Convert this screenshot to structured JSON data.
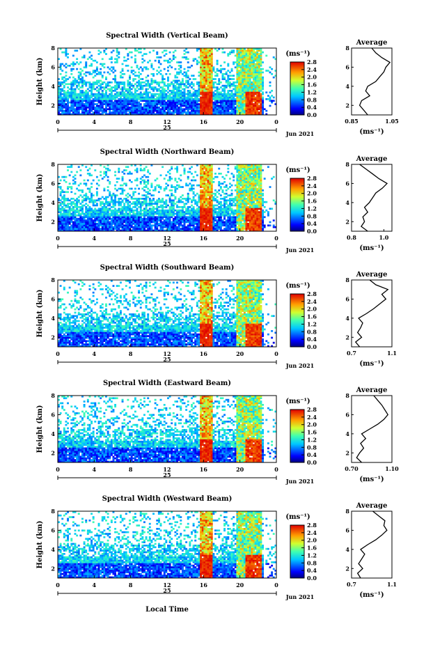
{
  "figure": {
    "colorbar_unit": "(ms⁻¹)",
    "colorbar_ticks": [
      "2.8",
      "2.4",
      "2.0",
      "1.6",
      "1.2",
      "0.8",
      "0.4",
      "0.0"
    ],
    "xlabel_bottom": "Local Time",
    "avg_title": "Average",
    "avg_xlabel": "(ms⁻¹)"
  },
  "chart_data": [
    {
      "type": "heatmap",
      "title": "Spectral Width (Vertical Beam)",
      "ylabel": "Height (km)",
      "yticks": [
        "2",
        "4",
        "6",
        "8"
      ],
      "ylim": [
        1,
        8
      ],
      "xticks": [
        "0",
        "4",
        "8",
        "12",
        "16",
        "20",
        "0"
      ],
      "xlim": [
        0,
        24
      ],
      "day_label": "25",
      "date_label": "Jun 2021",
      "colorbar": {
        "ticks": [
          "2.8",
          "2.4",
          "2.0",
          "1.6",
          "1.2",
          "0.8",
          "0.4",
          "0.0"
        ],
        "range": [
          0,
          2.8
        ]
      },
      "average_profile": {
        "title": "Average",
        "xlabel": "(ms⁻¹)",
        "xticks": [
          "0.85",
          "1.05"
        ],
        "xlim": [
          0.85,
          1.05
        ],
        "ylim": [
          1,
          8
        ],
        "height": [
          1.0,
          1.5,
          2.0,
          2.5,
          3.0,
          3.5,
          4.0,
          4.5,
          5.0,
          5.5,
          6.0,
          6.5,
          7.0,
          7.5,
          8.0
        ],
        "value": [
          0.93,
          0.91,
          0.89,
          0.9,
          0.94,
          0.92,
          0.93,
          0.97,
          0.99,
          1.01,
          1.02,
          1.04,
          1.0,
          0.97,
          0.95
        ]
      }
    },
    {
      "type": "heatmap",
      "title": "Spectral Width (Northward Beam)",
      "ylabel": "Height (km)",
      "yticks": [
        "2",
        "4",
        "6",
        "8"
      ],
      "ylim": [
        1,
        8
      ],
      "xticks": [
        "0",
        "4",
        "8",
        "12",
        "16",
        "20",
        "0"
      ],
      "xlim": [
        0,
        24
      ],
      "day_label": "25",
      "date_label": "Jun 2021",
      "colorbar": {
        "ticks": [
          "2.8",
          "2.4",
          "2.0",
          "1.6",
          "1.2",
          "0.8",
          "0.4",
          "0.0"
        ],
        "range": [
          0,
          2.8
        ]
      },
      "average_profile": {
        "title": "Average",
        "xlabel": "(ms⁻¹)",
        "xticks": [
          "0.8",
          "1.0"
        ],
        "xlim": [
          0.8,
          1.05
        ],
        "ylim": [
          1,
          8
        ],
        "height": [
          1.0,
          1.5,
          2.0,
          2.5,
          3.0,
          3.5,
          4.0,
          4.5,
          5.0,
          5.5,
          6.0,
          6.5,
          7.0,
          7.5,
          8.0
        ],
        "value": [
          0.9,
          0.86,
          0.88,
          0.87,
          0.9,
          0.88,
          0.91,
          0.93,
          0.95,
          0.99,
          1.02,
          0.97,
          0.93,
          0.89,
          0.85
        ]
      }
    },
    {
      "type": "heatmap",
      "title": "Spectral Width (Southward Beam)",
      "ylabel": "Height (km)",
      "yticks": [
        "2",
        "4",
        "6",
        "8"
      ],
      "ylim": [
        1,
        8
      ],
      "xticks": [
        "0",
        "4",
        "8",
        "12",
        "16",
        "20",
        "0"
      ],
      "xlim": [
        0,
        24
      ],
      "day_label": "25",
      "date_label": "Jun 2021",
      "colorbar": {
        "ticks": [
          "2.8",
          "2.4",
          "2.0",
          "1.6",
          "1.2",
          "0.8",
          "0.4",
          "0.0"
        ],
        "range": [
          0,
          2.8
        ]
      },
      "average_profile": {
        "title": "Average",
        "xlabel": "(ms⁻¹)",
        "xticks": [
          "0.7",
          "1.1"
        ],
        "xlim": [
          0.7,
          1.1
        ],
        "ylim": [
          1,
          8
        ],
        "height": [
          1.0,
          1.5,
          2.0,
          2.5,
          3.0,
          3.5,
          4.0,
          4.5,
          5.0,
          5.5,
          6.0,
          6.5,
          7.0,
          7.5,
          8.0
        ],
        "value": [
          0.78,
          0.74,
          0.8,
          0.76,
          0.79,
          0.81,
          0.77,
          0.85,
          0.92,
          0.98,
          1.04,
          1.0,
          1.06,
          0.94,
          0.88
        ]
      }
    },
    {
      "type": "heatmap",
      "title": "Spectral Width (Eastward Beam)",
      "ylabel": "Height (km)",
      "yticks": [
        "2",
        "4",
        "6",
        "8"
      ],
      "ylim": [
        1,
        8
      ],
      "xticks": [
        "0",
        "4",
        "8",
        "12",
        "16",
        "20",
        "0"
      ],
      "xlim": [
        0,
        24
      ],
      "day_label": "25",
      "date_label": "Jun 2021",
      "colorbar": {
        "ticks": [
          "2.8",
          "2.4",
          "2.0",
          "1.6",
          "1.2",
          "0.8",
          "0.4",
          "0.0"
        ],
        "range": [
          0,
          2.8
        ]
      },
      "average_profile": {
        "title": "Average",
        "xlabel": "(ms⁻¹)",
        "xticks": [
          "0.70",
          "1.10"
        ],
        "xlim": [
          0.7,
          1.1
        ],
        "ylim": [
          1,
          8
        ],
        "height": [
          1.0,
          1.5,
          2.0,
          2.5,
          3.0,
          3.5,
          4.0,
          4.5,
          5.0,
          5.5,
          6.0,
          6.5,
          7.0,
          7.5,
          8.0
        ],
        "value": [
          0.8,
          0.75,
          0.78,
          0.82,
          0.79,
          0.84,
          0.8,
          0.88,
          0.96,
          1.02,
          1.06,
          1.03,
          1.0,
          0.96,
          0.92
        ]
      }
    },
    {
      "type": "heatmap",
      "title": "Spectral Width (Westward Beam)",
      "ylabel": "Height (km)",
      "yticks": [
        "2",
        "4",
        "6",
        "8"
      ],
      "ylim": [
        1,
        8
      ],
      "xticks": [
        "0",
        "4",
        "8",
        "12",
        "16",
        "20",
        "0"
      ],
      "xlim": [
        0,
        24
      ],
      "xlabel": "Local Time",
      "day_label": "25",
      "date_label": "Jun 2021",
      "colorbar": {
        "ticks": [
          "2.8",
          "2.4",
          "2.0",
          "1.6",
          "1.2",
          "0.8",
          "0.4",
          "0.0"
        ],
        "range": [
          0,
          2.8
        ]
      },
      "average_profile": {
        "title": "Average",
        "xlabel": "(ms⁻¹)",
        "xticks": [
          "0.7",
          "1.1"
        ],
        "xlim": [
          0.7,
          1.1
        ],
        "ylim": [
          1,
          8
        ],
        "height": [
          1.0,
          1.5,
          2.0,
          2.5,
          3.0,
          3.5,
          4.0,
          4.5,
          5.0,
          5.5,
          6.0,
          6.5,
          7.0,
          7.5,
          8.0
        ],
        "value": [
          0.79,
          0.76,
          0.81,
          0.77,
          0.8,
          0.83,
          0.79,
          0.86,
          0.94,
          1.0,
          1.05,
          1.02,
          1.03,
          0.97,
          0.91
        ]
      }
    }
  ]
}
